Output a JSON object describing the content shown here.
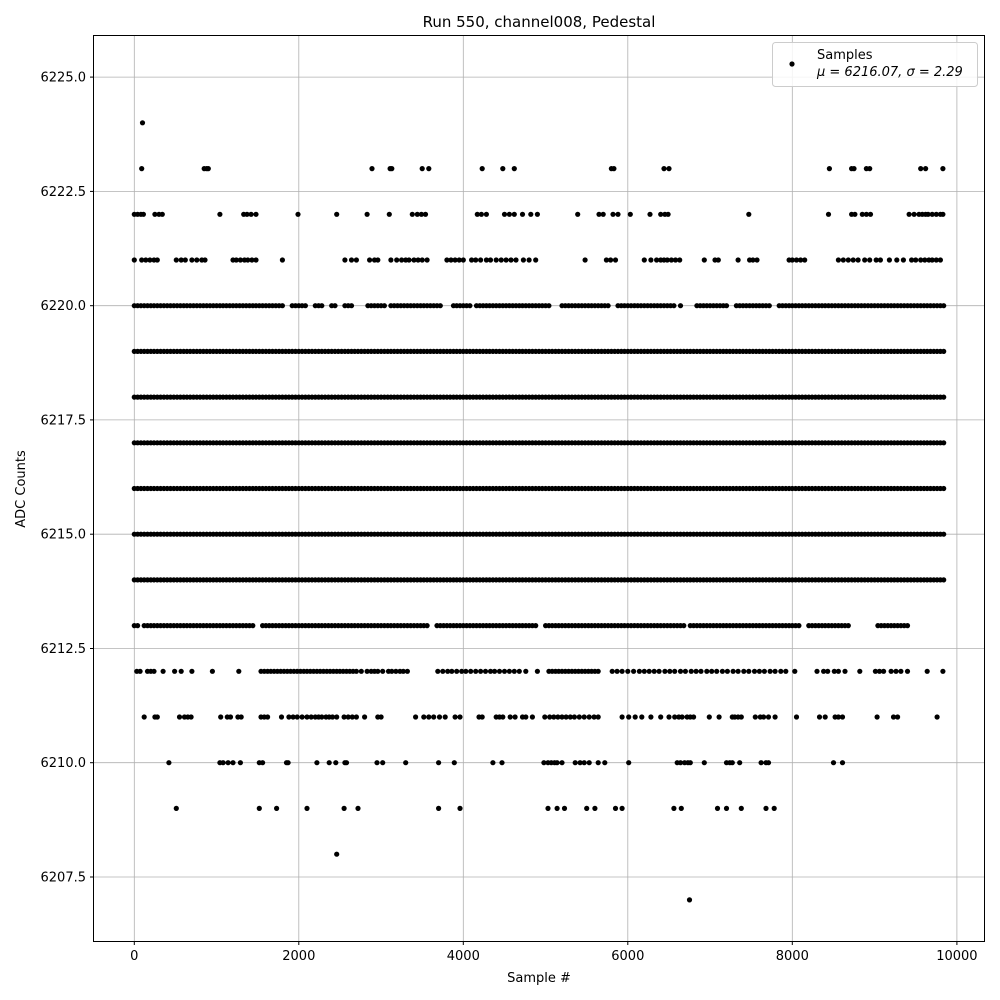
{
  "chart_data": {
    "type": "scatter",
    "title": "Run 550, channel008, Pedestal",
    "xlabel": "Sample #",
    "ylabel": "ADC Counts",
    "xlim": [
      -490,
      10330
    ],
    "ylim": [
      6206.1,
      6225.9
    ],
    "x_ticks": [
      0,
      2000,
      4000,
      6000,
      8000,
      10000
    ],
    "x_tick_labels": [
      "0",
      "2000",
      "4000",
      "6000",
      "8000",
      "10000"
    ],
    "y_ticks": [
      6207.5,
      6210.0,
      6212.5,
      6215.0,
      6217.5,
      6220.0,
      6222.5,
      6225.0
    ],
    "y_tick_labels": [
      "6207.5",
      "6210.0",
      "6212.5",
      "6215.0",
      "6217.5",
      "6220.0",
      "6222.5",
      "6225.0"
    ],
    "grid": true,
    "marker_color": "#000000",
    "legend_position": "top-right",
    "series": [
      {
        "name": "Samples",
        "stats_label": "μ = 6216.07, σ = 2.29",
        "n_samples": 9840,
        "levels": [
          {
            "y": 6207,
            "x": [
              6750
            ]
          },
          {
            "y": 6208,
            "x": [
              2460
            ]
          },
          {
            "y": 6209,
            "x": [
              510,
              1520,
              1730,
              2100,
              2550,
              2720,
              3700,
              3960,
              5030,
              5140,
              5230,
              5500,
              5600,
              5850,
              5930,
              6560,
              6650,
              7090,
              7200,
              7380,
              7680,
              7780
            ]
          },
          {
            "y": 6210,
            "x": [
              420,
              1040,
              1080,
              1140,
              1200,
              1290,
              1520,
              1560,
              1850,
              1870,
              2220,
              2370,
              2450,
              2560,
              2580,
              2950,
              3020,
              3300,
              3700,
              3890,
              4360,
              4470,
              4980,
              5030,
              5070,
              5110,
              5140,
              5200,
              5360,
              5420,
              5470,
              5530,
              5640,
              5720,
              6010,
              6600,
              6640,
              6690,
              6730,
              6760,
              6930,
              7200,
              7240,
              7270,
              7360,
              7620,
              7680,
              7710,
              8500,
              8610
            ]
          },
          {
            "y": 6211,
            "x": [
              120,
              250,
              280,
              550,
              610,
              650,
              690,
              1050,
              1130,
              1170,
              1260,
              1300,
              1540,
              1580,
              1620,
              1790,
              1880,
              1930,
              1980,
              2040,
              2100,
              2150,
              2200,
              2240,
              2280,
              2330,
              2370,
              2410,
              2460,
              2550,
              2600,
              2650,
              2700,
              2800,
              2960,
              3000,
              3420,
              3520,
              3580,
              3640,
              3710,
              3780,
              3900,
              3960,
              4190,
              4230,
              4400,
              4440,
              4480,
              4570,
              4630,
              4720,
              4760,
              4840,
              4990,
              5050,
              5100,
              5150,
              5200,
              5250,
              5300,
              5350,
              5410,
              5470,
              5530,
              5590,
              5640,
              5930,
              6010,
              6090,
              6170,
              6280,
              6400,
              6500,
              6570,
              6620,
              6660,
              6720,
              6760,
              6800,
              6990,
              7110,
              7270,
              7300,
              7340,
              7380,
              7550,
              7610,
              7650,
              7710,
              7790,
              8050,
              8330,
              8400,
              8520,
              8560,
              8610,
              9030,
              9230,
              9280,
              9760
            ]
          },
          {
            "y": 6212,
            "x": [
              30,
              70,
              160,
              200,
              240,
              350,
              490,
              570,
              700,
              950,
              1270,
              1540,
              1580,
              1620,
              1660,
              1700,
              1740,
              1780,
              1820,
              1860,
              1900,
              1940,
              1980,
              2020,
              2060,
              2100,
              2140,
              2180,
              2220,
              2260,
              2300,
              2340,
              2380,
              2420,
              2460,
              2500,
              2540,
              2580,
              2620,
              2660,
              2700,
              2760,
              2830,
              2880,
              2920,
              2960,
              3020,
              3090,
              3130,
              3180,
              3230,
              3270,
              3320,
              3690,
              3750,
              3810,
              3860,
              3920,
              3980,
              4030,
              4090,
              4150,
              4210,
              4270,
              4330,
              4380,
              4440,
              4500,
              4560,
              4620,
              4680,
              4760,
              4900,
              5040,
              5080,
              5120,
              5160,
              5200,
              5240,
              5280,
              5320,
              5360,
              5400,
              5440,
              5480,
              5520,
              5560,
              5600,
              5640,
              5810,
              5870,
              5930,
              6000,
              6070,
              6140,
              6200,
              6260,
              6320,
              6380,
              6450,
              6510,
              6570,
              6640,
              6700,
              6770,
              6830,
              6890,
              6960,
              7020,
              7080,
              7150,
              7210,
              7280,
              7340,
              7410,
              7470,
              7540,
              7600,
              7660,
              7730,
              7790,
              7860,
              7920,
              8030,
              8300,
              8380,
              8430,
              8510,
              8560,
              8640,
              8820,
              9010,
              9060,
              9110,
              9200,
              9260,
              9320,
              9400,
              9640,
              9830
            ]
          },
          {
            "y": 6221,
            "x": [
              0,
              90,
              140,
              190,
              240,
              280,
              510,
              570,
              620,
              700,
              760,
              820,
              860,
              1200,
              1240,
              1290,
              1340,
              1380,
              1430,
              1480,
              1800,
              2560,
              2640,
              2700,
              2860,
              2920,
              2960,
              3120,
              3190,
              3250,
              3300,
              3340,
              3400,
              3450,
              3500,
              3560,
              3800,
              3850,
              3900,
              3950,
              4000,
              4100,
              4150,
              4210,
              4280,
              4330,
              4400,
              4460,
              4520,
              4580,
              4640,
              4730,
              4800,
              4880,
              5480,
              5740,
              5790,
              5850,
              6200,
              6280,
              6350,
              6400,
              6440,
              6480,
              6530,
              6580,
              6630,
              6930,
              7060,
              7100,
              7340,
              7480,
              7520,
              7570,
              7960,
              8000,
              8050,
              8100,
              8150,
              8560,
              8620,
              8680,
              8740,
              8800,
              8880,
              8940,
              9020,
              9070,
              9180,
              9270,
              9350,
              9450,
              9500,
              9560,
              9610,
              9660,
              9700,
              9750,
              9800
            ]
          },
          {
            "y": 6222,
            "x": [
              0,
              40,
              80,
              110,
              250,
              300,
              340,
              1040,
              1330,
              1370,
              1420,
              1480,
              1990,
              2460,
              2830,
              3100,
              3380,
              3440,
              3490,
              3540,
              4170,
              4220,
              4280,
              4500,
              4560,
              4620,
              4720,
              4820,
              4900,
              5390,
              5650,
              5700,
              5820,
              5880,
              6030,
              6270,
              6400,
              6450,
              6490,
              7470,
              8440,
              8720,
              8760,
              8850,
              8900,
              8950,
              9420,
              9480,
              9540,
              9580,
              9620,
              9650,
              9700,
              9750,
              9800,
              9830
            ]
          },
          {
            "y": 6223,
            "x": [
              90,
              850,
              880,
              900,
              2890,
              3110,
              3130,
              3500,
              3580,
              4230,
              4480,
              4620,
              5800,
              5830,
              6440,
              6500,
              8450,
              8720,
              8750,
              8900,
              8940,
              9560,
              9620,
              9830
            ]
          },
          {
            "y": 6224,
            "x": [
              100
            ]
          }
        ],
        "dense_levels": [
          6213,
          6214,
          6215,
          6216,
          6217,
          6218,
          6219,
          6220
        ],
        "dense_gaps": [
          {
            "y": 6213,
            "gaps": [
              [
                60,
                110
              ],
              [
                1470,
                1530
              ],
              [
                3580,
                3660
              ],
              [
                4890,
                4970
              ],
              [
                6690,
                6740
              ],
              [
                8090,
                8170
              ],
              [
                8700,
                9000
              ],
              [
                9440,
                9900
              ]
            ]
          },
          {
            "y": 6220,
            "gaps": [
              [
                1840,
                1900
              ],
              [
                2120,
                2180
              ],
              [
                2300,
                2360
              ],
              [
                2450,
                2530
              ],
              [
                2670,
                2820
              ],
              [
                3050,
                3080
              ],
              [
                3760,
                3840
              ],
              [
                4100,
                4140
              ],
              [
                5080,
                5190
              ],
              [
                5800,
                5860
              ],
              [
                6580,
                6620
              ],
              [
                6660,
                6820
              ],
              [
                7240,
                7280
              ],
              [
                7760,
                7820
              ]
            ]
          }
        ]
      }
    ]
  }
}
